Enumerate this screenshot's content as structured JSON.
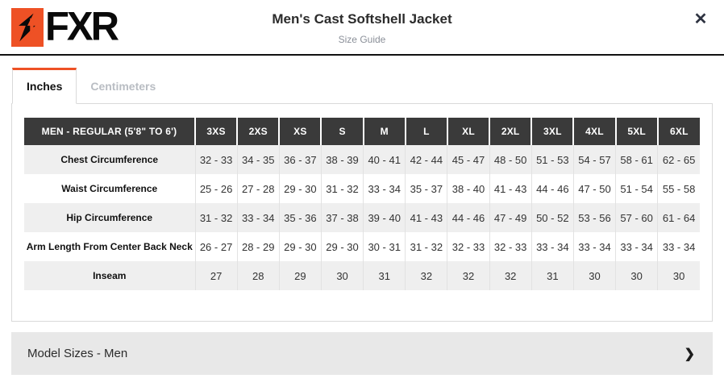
{
  "header": {
    "title": "Men's Cast Softshell Jacket",
    "subtitle": "Size Guide",
    "logo_text": "FXR",
    "close_glyph": "✕"
  },
  "tabs": [
    {
      "label": "Inches",
      "active": true
    },
    {
      "label": "Centimeters",
      "active": false
    }
  ],
  "size_chart": {
    "corner_header": "MEN - REGULAR (5'8\" TO 6')",
    "columns": [
      "3XS",
      "2XS",
      "XS",
      "S",
      "M",
      "L",
      "XL",
      "2XL",
      "3XL",
      "4XL",
      "5XL",
      "6XL"
    ],
    "rows": [
      {
        "label": "Chest Circumference",
        "values": [
          "32 - 33",
          "34 - 35",
          "36 - 37",
          "38 - 39",
          "40 - 41",
          "42 - 44",
          "45 - 47",
          "48 - 50",
          "51 - 53",
          "54 - 57",
          "58 - 61",
          "62 - 65"
        ]
      },
      {
        "label": "Waist Circumference",
        "values": [
          "25 - 26",
          "27 - 28",
          "29 - 30",
          "31 - 32",
          "33 - 34",
          "35 - 37",
          "38 - 40",
          "41 - 43",
          "44 - 46",
          "47 - 50",
          "51 - 54",
          "55 - 58"
        ]
      },
      {
        "label": "Hip Circumference",
        "values": [
          "31 - 32",
          "33 - 34",
          "35 - 36",
          "37 - 38",
          "39 - 40",
          "41 - 43",
          "44 - 46",
          "47 - 49",
          "50 - 52",
          "53 - 56",
          "57 - 60",
          "61 - 64"
        ]
      },
      {
        "label": "Arm Length From Center Back Neck",
        "values": [
          "26 - 27",
          "28 - 29",
          "29 - 30",
          "29 - 30",
          "30 - 31",
          "31 - 32",
          "32 - 33",
          "32 - 33",
          "33 - 34",
          "33 - 34",
          "33 - 34",
          "33 - 34"
        ]
      },
      {
        "label": "Inseam",
        "values": [
          "27",
          "28",
          "29",
          "30",
          "31",
          "32",
          "32",
          "32",
          "31",
          "30",
          "30",
          "30"
        ]
      }
    ]
  },
  "accordion": {
    "label": "Model Sizes - Men",
    "chevron_glyph": "❯"
  },
  "colors": {
    "accent_orange": "#ee5125",
    "table_header_bg": "#3a3a3a",
    "row_alt_bg": "#efefef",
    "accordion_bg": "#e8e8e8",
    "header_divider": "#111111"
  }
}
